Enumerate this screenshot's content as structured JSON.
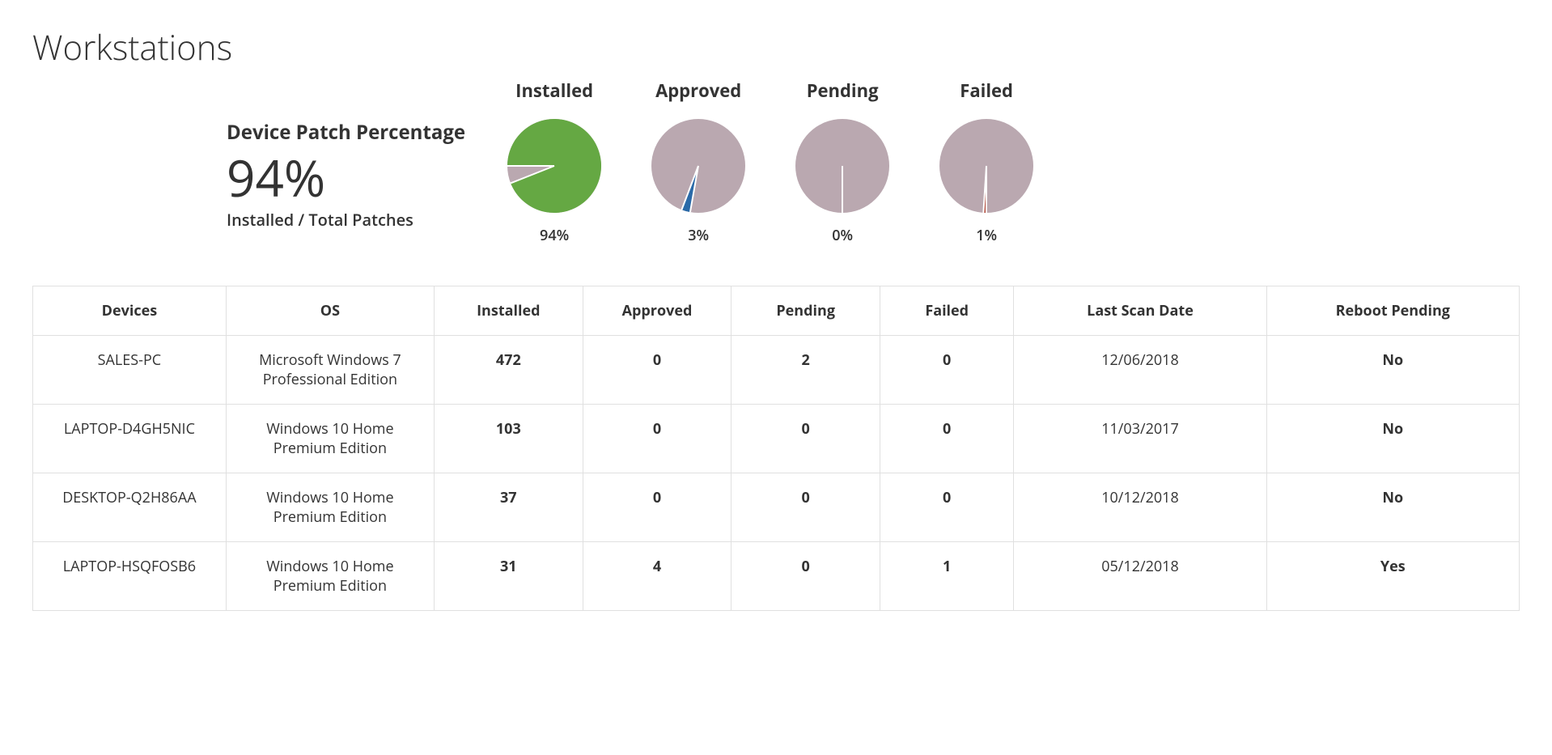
{
  "page": {
    "title": "Workstations"
  },
  "summary": {
    "label": "Device Patch Percentage",
    "percentage_value": "94%",
    "subtitle": "Installed / Total Patches"
  },
  "pies": {
    "background_color": "#baa8b0",
    "separator_color": "#ffffff",
    "separator_width": 2,
    "font_size_title": 22,
    "font_size_pct": 18,
    "items": [
      {
        "title": "Installed",
        "percent": 94,
        "pct_label": "94%",
        "slice_color": "#65a843",
        "start_angle": 270
      },
      {
        "title": "Approved",
        "percent": 3,
        "pct_label": "3%",
        "slice_color": "#2a6aa8",
        "start_angle": 190
      },
      {
        "title": "Pending",
        "percent": 0,
        "pct_label": "0%",
        "slice_color": "#8a7a2a",
        "start_angle": 180
      },
      {
        "title": "Failed",
        "percent": 1,
        "pct_label": "1%",
        "slice_color": "#b04a3a",
        "start_angle": 180
      }
    ]
  },
  "table": {
    "colors": {
      "installed": "#4a8a3a",
      "approved": "#2a6aa8",
      "pending": "#8a7a2a",
      "failed": "#b04a3a",
      "border": "#e0e0e0"
    },
    "columns": [
      "Devices",
      "OS",
      "Installed",
      "Approved",
      "Pending",
      "Failed",
      "Last Scan Date",
      "Reboot Pending"
    ],
    "rows": [
      {
        "device": "SALES-PC",
        "os": "Microsoft Windows 7 Professional Edition",
        "installed": "472",
        "approved": "0",
        "pending": "2",
        "failed": "0",
        "last_scan": "12/06/2018",
        "reboot": "No"
      },
      {
        "device": "LAPTOP-D4GH5NIC",
        "os": "Windows 10 Home Premium Edition",
        "installed": "103",
        "approved": "0",
        "pending": "0",
        "failed": "0",
        "last_scan": "11/03/2017",
        "reboot": "No"
      },
      {
        "device": "DESKTOP-Q2H86AA",
        "os": "Windows 10 Home Premium Edition",
        "installed": "37",
        "approved": "0",
        "pending": "0",
        "failed": "0",
        "last_scan": "10/12/2018",
        "reboot": "No"
      },
      {
        "device": "LAPTOP-HSQFOSB6",
        "os": "Windows 10 Home Premium Edition",
        "installed": "31",
        "approved": "4",
        "pending": "0",
        "failed": "1",
        "last_scan": "05/12/2018",
        "reboot": "Yes"
      }
    ]
  }
}
